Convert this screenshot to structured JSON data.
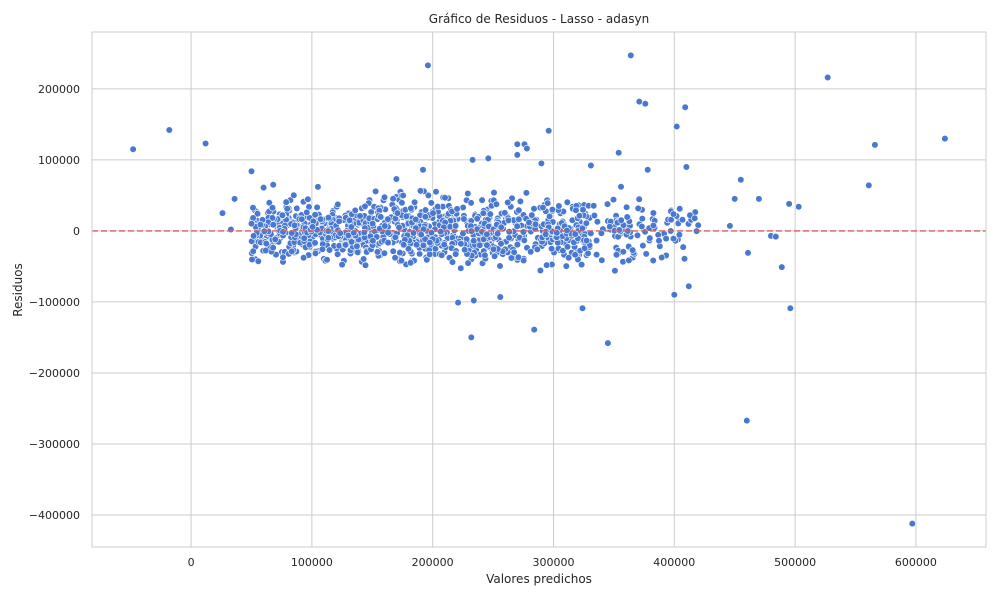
{
  "chart_data": {
    "type": "scatter",
    "title": "Gráfico de Residuos - Lasso - adasyn",
    "xlabel": "Valores predichos",
    "ylabel": "Residuos",
    "xlim": [
      -82000,
      658000
    ],
    "ylim": [
      -445000,
      280000
    ],
    "xticks": [
      0,
      100000,
      200000,
      300000,
      400000,
      500000,
      600000
    ],
    "yticks": [
      -400000,
      -300000,
      -200000,
      -100000,
      0,
      100000,
      200000
    ],
    "grid": true,
    "reference_line": {
      "y": 0,
      "color": "#d65f5f",
      "style": "dashed"
    },
    "point_color": "#4878d0",
    "cluster": {
      "description_points_generated": "dense cloud of points",
      "segments": [
        {
          "x_range": [
            50000,
            150000
          ],
          "y_spread": 32000,
          "count": 420
        },
        {
          "x_range": [
            150000,
            250000
          ],
          "y_spread": 38000,
          "count": 400
        },
        {
          "x_range": [
            250000,
            330000
          ],
          "y_spread": 40000,
          "count": 260
        },
        {
          "x_range": [
            330000,
            420000
          ],
          "y_spread": 36000,
          "count": 110
        }
      ]
    },
    "points": [
      {
        "x": -48000,
        "y": 115000
      },
      {
        "x": -18000,
        "y": 142000
      },
      {
        "x": 12000,
        "y": 123000
      },
      {
        "x": 26000,
        "y": 25000
      },
      {
        "x": 33000,
        "y": 2000
      },
      {
        "x": 36000,
        "y": 45000
      },
      {
        "x": 50000,
        "y": 84000
      },
      {
        "x": 196000,
        "y": 233000
      },
      {
        "x": 364000,
        "y": 247000
      },
      {
        "x": 371000,
        "y": 182000
      },
      {
        "x": 376000,
        "y": 179000
      },
      {
        "x": 409000,
        "y": 174000
      },
      {
        "x": 402000,
        "y": 147000
      },
      {
        "x": 296000,
        "y": 141000
      },
      {
        "x": 527000,
        "y": 216000
      },
      {
        "x": 624000,
        "y": 130000
      },
      {
        "x": 566000,
        "y": 121000
      },
      {
        "x": 561000,
        "y": 64000
      },
      {
        "x": 495000,
        "y": 38000
      },
      {
        "x": 503000,
        "y": 34000
      },
      {
        "x": 470000,
        "y": 45000
      },
      {
        "x": 455000,
        "y": 72000
      },
      {
        "x": 450000,
        "y": 45000
      },
      {
        "x": 446000,
        "y": 7000
      },
      {
        "x": 480000,
        "y": -7000
      },
      {
        "x": 484000,
        "y": -8000
      },
      {
        "x": 461000,
        "y": -31000
      },
      {
        "x": 489000,
        "y": -51000
      },
      {
        "x": 496000,
        "y": -109000
      },
      {
        "x": 460000,
        "y": -267000
      },
      {
        "x": 597000,
        "y": -412000
      },
      {
        "x": 232000,
        "y": -150000
      },
      {
        "x": 284000,
        "y": -139000
      },
      {
        "x": 345000,
        "y": -158000
      },
      {
        "x": 324000,
        "y": -109000
      },
      {
        "x": 400000,
        "y": -90000
      },
      {
        "x": 412000,
        "y": -78000
      },
      {
        "x": 256000,
        "y": -93000
      },
      {
        "x": 221000,
        "y": -101000
      },
      {
        "x": 234000,
        "y": -98000
      },
      {
        "x": 246000,
        "y": 102000
      },
      {
        "x": 233000,
        "y": 100000
      },
      {
        "x": 270000,
        "y": 122000
      },
      {
        "x": 276000,
        "y": 122000
      },
      {
        "x": 278000,
        "y": 116000
      },
      {
        "x": 270000,
        "y": 107000
      },
      {
        "x": 354000,
        "y": 110000
      },
      {
        "x": 290000,
        "y": 95000
      },
      {
        "x": 331000,
        "y": 92000
      },
      {
        "x": 378000,
        "y": 86000
      },
      {
        "x": 410000,
        "y": 90000
      },
      {
        "x": 192000,
        "y": 86000
      },
      {
        "x": 105000,
        "y": 62000
      },
      {
        "x": 170000,
        "y": 73000
      },
      {
        "x": 60000,
        "y": 61000
      },
      {
        "x": 68000,
        "y": 65000
      }
    ]
  }
}
